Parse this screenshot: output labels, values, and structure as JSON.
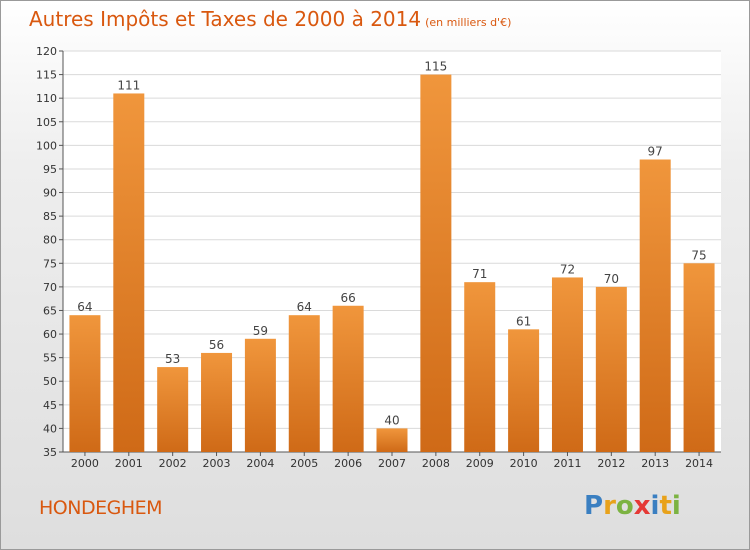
{
  "title": {
    "main": "Autres Impôts et Taxes de 2000 à 2014",
    "unit": "(en milliers d'€)"
  },
  "commune": "HONDEGHEM",
  "logo": {
    "letters": [
      "P",
      "r",
      "o",
      "x",
      "i",
      "t",
      "i"
    ],
    "colors": [
      "#3a7fc1",
      "#e8a21b",
      "#7cb342",
      "#e53935",
      "#3a7fc1",
      "#e8a21b",
      "#7cb342"
    ]
  },
  "colors": {
    "bar": "#f0963c",
    "bar_dark": "#cf6a17",
    "title": "#d9580f",
    "grid": "#dadada"
  },
  "chart_data": {
    "type": "bar",
    "title": "Autres Impôts et Taxes de 2000 à 2014",
    "subtitle": "(en milliers d'€)",
    "xlabel": "",
    "ylabel": "",
    "categories": [
      "2000",
      "2001",
      "2002",
      "2003",
      "2004",
      "2005",
      "2006",
      "2007",
      "2008",
      "2009",
      "2010",
      "2011",
      "2012",
      "2013",
      "2014"
    ],
    "values": [
      64,
      111,
      53,
      56,
      59,
      64,
      66,
      40,
      115,
      71,
      61,
      72,
      70,
      97,
      75
    ],
    "ylim": [
      35,
      120
    ],
    "yticks": [
      35,
      40,
      45,
      50,
      55,
      60,
      65,
      70,
      75,
      80,
      85,
      90,
      95,
      100,
      105,
      110,
      115,
      120
    ],
    "grid": true,
    "legend": "none"
  }
}
